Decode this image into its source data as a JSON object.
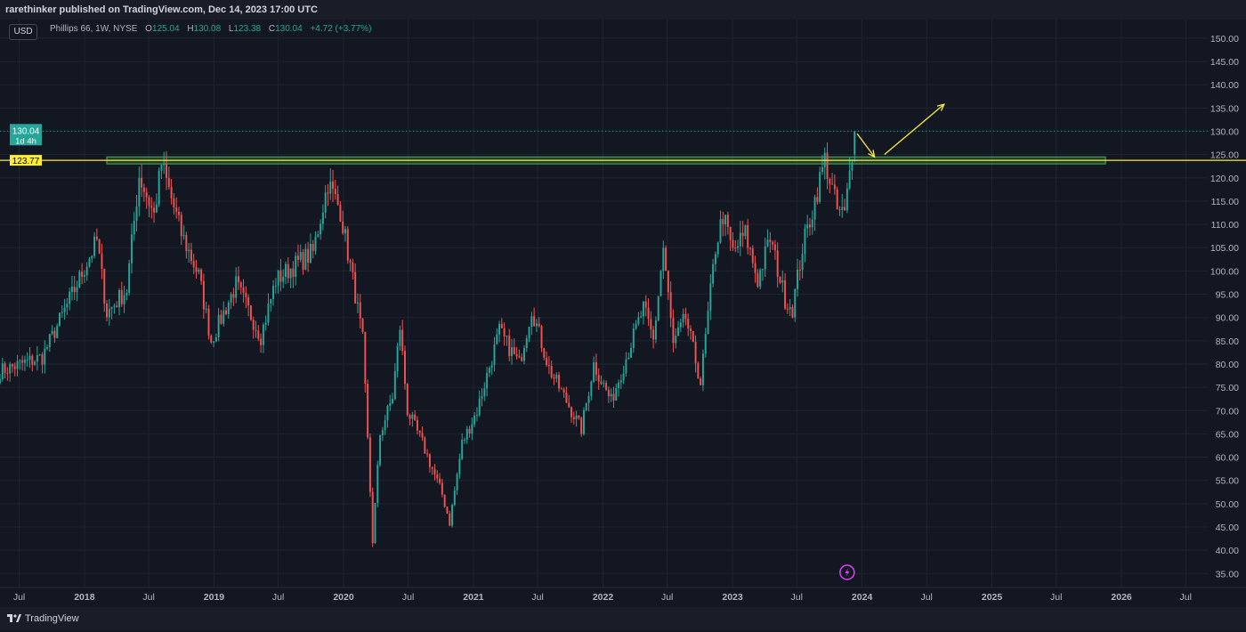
{
  "header": {
    "publish_line": "rarethinker published on TradingView.com, Dec 14, 2023 17:00 UTC"
  },
  "toolbar": {
    "currency": "USD"
  },
  "legend": {
    "symbol": "Phillips 66, 1W, NYSE",
    "o_label": "O",
    "o_value": "125.04",
    "h_label": "H",
    "h_value": "130.08",
    "l_label": "L",
    "l_value": "123.38",
    "c_label": "C",
    "c_value": "130.04",
    "change": "+4.72 (+3.77%)"
  },
  "price_badge": {
    "price": "130.04",
    "countdown": "1d 4h"
  },
  "level_badge": {
    "price": "123.77"
  },
  "footer": {
    "brand": "TradingView"
  },
  "colors": {
    "up": "#26a69a",
    "down": "#ef5350",
    "background": "#131722",
    "grid": "#1f2433",
    "level_line": "#ffeb3b",
    "zone": "#4caf50",
    "arrow": "#ffeb3b",
    "event_icon": "#e040fb"
  },
  "icons": {
    "event_marker": "lightning-icon",
    "brand_logo": "tradingview-logo-icon"
  },
  "chart_data": {
    "type": "candlestick",
    "title": "",
    "xlabel": "",
    "ylabel": "",
    "ylim": [
      32,
      154
    ],
    "y_ticks": [
      "150.00",
      "145.00",
      "140.00",
      "135.00",
      "130.00",
      "125.00",
      "120.00",
      "115.00",
      "110.00",
      "105.00",
      "100.00",
      "95.00",
      "90.00",
      "85.00",
      "80.00",
      "75.00",
      "70.00",
      "65.00",
      "60.00",
      "55.00",
      "50.00",
      "45.00",
      "40.00",
      "35.00"
    ],
    "x_ticks": [
      "Jul",
      "2018",
      "Jul",
      "2019",
      "Jul",
      "2020",
      "Jul",
      "2021",
      "Jul",
      "2022",
      "Jul",
      "2023",
      "Jul",
      "2024",
      "Jul",
      "2025",
      "Jul",
      "2026",
      "Jul"
    ],
    "x_range": [
      "2017-05-08",
      "2026-09-01"
    ],
    "grid": true,
    "last_price": 130.04,
    "horizontal_level": 123.77,
    "zone": {
      "low": 123.0,
      "high": 124.5,
      "from": "2018-03-05",
      "to": "2025-11-17"
    },
    "arrows": [
      {
        "from": [
          "2023-12-18",
          129.5
        ],
        "to": [
          "2024-02-05",
          124.5
        ]
      },
      {
        "from": [
          "2024-03-04",
          125.0
        ],
        "to": [
          "2024-08-19",
          135.8
        ]
      }
    ],
    "path_keypoints": [
      [
        "2017-05-08",
        78.5
      ],
      [
        "2017-09-04",
        81.5
      ],
      [
        "2017-12-04",
        96
      ],
      [
        "2018-02-05",
        106.5
      ],
      [
        "2018-03-05",
        91
      ],
      [
        "2018-04-30",
        96
      ],
      [
        "2018-06-04",
        120.5
      ],
      [
        "2018-07-16",
        112
      ],
      [
        "2018-08-06",
        123
      ],
      [
        "2018-10-01",
        108
      ],
      [
        "2018-11-19",
        99
      ],
      [
        "2018-12-24",
        85
      ],
      [
        "2019-03-04",
        97
      ],
      [
        "2019-05-13",
        86
      ],
      [
        "2019-06-24",
        98
      ],
      [
        "2019-08-12",
        101
      ],
      [
        "2019-10-07",
        104
      ],
      [
        "2019-11-18",
        119
      ],
      [
        "2019-12-23",
        113
      ],
      [
        "2020-02-03",
        95
      ],
      [
        "2020-02-24",
        85
      ],
      [
        "2020-03-23",
        42
      ],
      [
        "2020-04-13",
        65
      ],
      [
        "2020-05-18",
        73
      ],
      [
        "2020-06-08",
        88
      ],
      [
        "2020-06-29",
        70
      ],
      [
        "2020-08-10",
        63
      ],
      [
        "2020-10-05",
        52
      ],
      [
        "2020-10-26",
        46
      ],
      [
        "2020-11-30",
        63
      ],
      [
        "2021-01-11",
        70
      ],
      [
        "2021-03-15",
        87
      ],
      [
        "2021-05-10",
        80
      ],
      [
        "2021-06-14",
        92
      ],
      [
        "2021-08-02",
        79
      ],
      [
        "2021-09-27",
        71
      ],
      [
        "2021-11-01",
        66
      ],
      [
        "2021-12-06",
        80
      ],
      [
        "2022-01-24",
        72
      ],
      [
        "2022-03-28",
        86
      ],
      [
        "2022-04-25",
        92
      ],
      [
        "2022-05-23",
        85
      ],
      [
        "2022-06-20",
        105
      ],
      [
        "2022-07-18",
        84
      ],
      [
        "2022-08-22",
        90
      ],
      [
        "2022-10-03",
        76
      ],
      [
        "2022-11-14",
        105
      ],
      [
        "2022-12-05",
        112
      ],
      [
        "2023-01-02",
        104
      ],
      [
        "2023-02-06",
        108
      ],
      [
        "2023-03-13",
        98
      ],
      [
        "2023-04-17",
        107
      ],
      [
        "2023-05-29",
        94
      ],
      [
        "2023-06-19",
        92
      ],
      [
        "2023-07-17",
        105
      ],
      [
        "2023-08-14",
        113
      ],
      [
        "2023-09-18",
        124
      ],
      [
        "2023-10-23",
        113
      ],
      [
        "2023-11-13",
        112
      ],
      [
        "2023-12-11",
        130
      ]
    ]
  }
}
